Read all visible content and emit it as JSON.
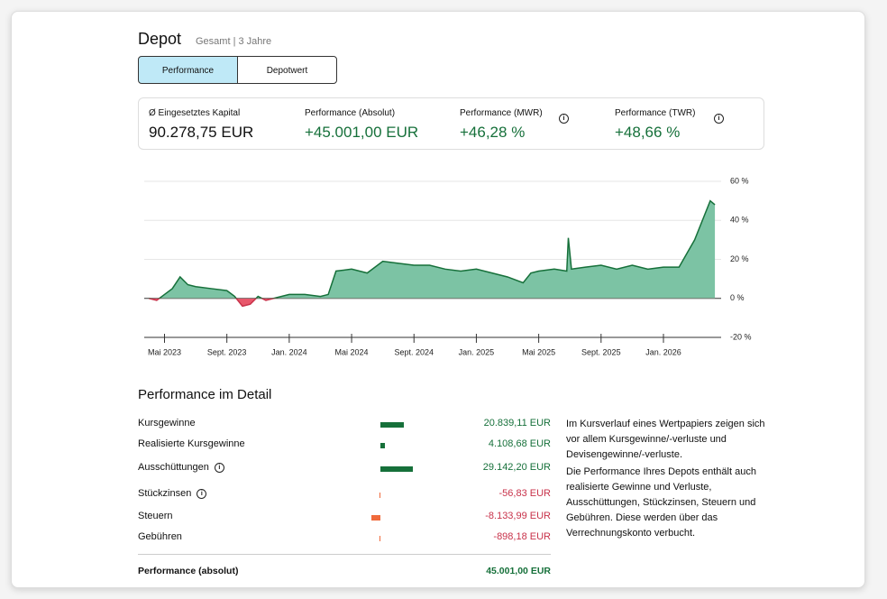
{
  "header": {
    "title": "Depot",
    "subtitle": "Gesamt | 3 Jahre"
  },
  "tabs": [
    "Performance",
    "Depotwert"
  ],
  "kpis": [
    {
      "label": "Ø Eingesetztes Kapital",
      "value": "90.278,75 EUR",
      "info": false
    },
    {
      "label": "Performance (Absolut)",
      "value": "+45.001,00 EUR",
      "info": false
    },
    {
      "label": "Performance (MWR)",
      "value": "+46,28 %",
      "info": true
    },
    {
      "label": "Performance (TWR)",
      "value": "+48,66 %",
      "info": true
    }
  ],
  "chart": {
    "type": "area",
    "x": [
      0,
      0.5,
      1,
      1.5,
      2,
      2.5,
      3,
      4,
      5,
      5.5,
      6,
      6.5,
      7,
      7.5,
      8,
      9,
      10,
      11,
      11.5,
      12,
      13,
      14,
      15,
      16,
      17,
      18,
      19,
      20,
      21,
      22,
      23,
      24,
      24.5,
      25,
      26,
      26.8,
      26.9,
      27.1,
      28,
      29,
      30,
      31,
      32,
      33,
      34,
      34.5,
      35,
      35.5,
      36,
      36.3
    ],
    "values": [
      0,
      -1,
      2,
      5,
      11,
      7,
      6,
      5,
      4,
      1,
      -4,
      -3,
      1,
      -1,
      0,
      2,
      2,
      1,
      2,
      14,
      15,
      13,
      19,
      18,
      17,
      17,
      15,
      14,
      15,
      13,
      11,
      8,
      13,
      14,
      15,
      14,
      31,
      15,
      16,
      17,
      15,
      17,
      15,
      16,
      16,
      23,
      30,
      40,
      50,
      48
    ],
    "xlim": [
      -0.3,
      36.7
    ],
    "ylim": [
      -20,
      60
    ],
    "xticks": [
      {
        "value": 1,
        "label": "Mai 2023"
      },
      {
        "value": 5,
        "label": "Sept. 2023"
      },
      {
        "value": 9,
        "label": "Jan. 2024"
      },
      {
        "value": 13,
        "label": "Mai 2024"
      },
      {
        "value": 17,
        "label": "Sept. 2024"
      },
      {
        "value": 21,
        "label": "Jan. 2025"
      },
      {
        "value": 25,
        "label": "Mai 2025"
      },
      {
        "value": 29,
        "label": "Sept. 2025"
      },
      {
        "value": 33,
        "label": "Jan. 2026"
      }
    ],
    "yticks": [
      {
        "value": -20,
        "label": "-20 %"
      },
      {
        "value": 0,
        "label": "0 %"
      },
      {
        "value": 20,
        "label": "20 %"
      },
      {
        "value": 40,
        "label": "40 %"
      },
      {
        "value": 60,
        "label": "60 %"
      }
    ],
    "color_pos": "#7cc3a4",
    "color_neg": "#e8576b",
    "line_pos": "#16703a",
    "line_neg": "#c8324a",
    "grid": true
  },
  "detail": {
    "title": "Performance im Detail",
    "rows": [
      {
        "label": "Kursgewinne",
        "value": 20839.11,
        "value_label": "20.839,11 EUR",
        "info": false
      },
      {
        "label": "Realisierte Kursgewinne",
        "value": 4108.68,
        "value_label": "4.108,68 EUR",
        "info": false
      },
      {
        "label": "Ausschüttungen",
        "value": 29142.2,
        "value_label": "29.142,20 EUR",
        "info": true
      },
      {
        "label": "Stückzinsen",
        "value": -56.83,
        "value_label": "-56,83 EUR",
        "info": true
      },
      {
        "label": "Steuern",
        "value": -8133.99,
        "value_label": "-8.133,99 EUR",
        "info": false
      },
      {
        "label": "Gebühren",
        "value": -898.18,
        "value_label": "-898,18 EUR",
        "info": false
      }
    ],
    "total": {
      "label": "Performance (absolut)",
      "value": "45.001,00 EUR"
    }
  },
  "notes": [
    "Im Kursverlauf eines Wertpapiers zeigen sich vor allem Kursgewinne/-verluste und Devisengewinne/-verluste.",
    "Die Performance Ihres Depots enthält auch realisierte Gewinne und Verluste, Ausschüttungen, Stückzinsen, Steuern und Gebühren. Diese werden über das Verrechnungskonto verbucht."
  ]
}
